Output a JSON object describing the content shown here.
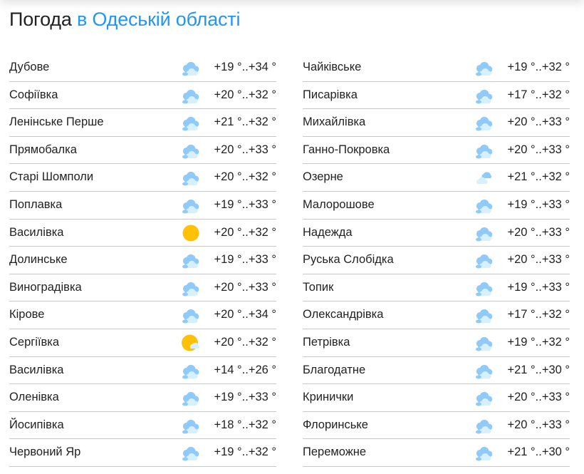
{
  "header": {
    "title_prefix": "Погода",
    "title_region": "в Одеській області"
  },
  "colors": {
    "accent": "#2196f3",
    "cloud_dark": "#90caf9",
    "cloud_light": "#d6f1fd",
    "sun": "#ffc107"
  },
  "columns": [
    [
      {
        "name": "Дубове",
        "icon": "cloudy-icon",
        "temp": "+19 °..+34 °"
      },
      {
        "name": "Софіївка",
        "icon": "cloudy-icon",
        "temp": "+20 °..+32 °"
      },
      {
        "name": "Ленінське Перше",
        "icon": "cloudy-icon",
        "temp": "+21 °..+32 °"
      },
      {
        "name": "Прямобалка",
        "icon": "cloudy-icon",
        "temp": "+20 °..+33 °"
      },
      {
        "name": "Старі Шомполи",
        "icon": "cloudy-icon",
        "temp": "+20 °..+32 °"
      },
      {
        "name": "Поплавка",
        "icon": "cloudy-icon",
        "temp": "+19 °..+33 °"
      },
      {
        "name": "Василівка",
        "icon": "sun-icon",
        "temp": "+20 °..+32 °"
      },
      {
        "name": "Долинське",
        "icon": "cloudy-icon",
        "temp": "+19 °..+33 °"
      },
      {
        "name": "Виноградівка",
        "icon": "cloudy-icon",
        "temp": "+20 °..+33 °"
      },
      {
        "name": "Кірове",
        "icon": "cloudy-icon",
        "temp": "+20 °..+34 °"
      },
      {
        "name": "Сергіївка",
        "icon": "partly-cloudy-icon",
        "temp": "+20 °..+32 °"
      },
      {
        "name": "Василівка",
        "icon": "cloudy-icon",
        "temp": "+14 °..+26 °"
      },
      {
        "name": "Оленівка",
        "icon": "cloudy-icon",
        "temp": "+19 °..+33 °"
      },
      {
        "name": "Йосипівка",
        "icon": "cloudy-icon",
        "temp": "+18 °..+32 °"
      },
      {
        "name": "Червоний Яр",
        "icon": "cloudy-icon",
        "temp": "+19 °..+32 °"
      }
    ],
    [
      {
        "name": "Чайківське",
        "icon": "cloudy-icon",
        "temp": "+19 °..+32 °"
      },
      {
        "name": "Писарівка",
        "icon": "cloudy-icon",
        "temp": "+17 °..+32 °"
      },
      {
        "name": "Михайлівка",
        "icon": "cloudy-icon",
        "temp": "+20 °..+33 °"
      },
      {
        "name": "Ганно-Покровка",
        "icon": "cloudy-icon",
        "temp": "+20 °..+33 °"
      },
      {
        "name": "Озерне",
        "icon": "light-cloud-icon",
        "temp": "+21 °..+32 °"
      },
      {
        "name": "Малорошове",
        "icon": "cloudy-icon",
        "temp": "+19 °..+33 °"
      },
      {
        "name": "Надежда",
        "icon": "cloudy-icon",
        "temp": "+20 °..+33 °"
      },
      {
        "name": "Руська Слобідка",
        "icon": "cloudy-icon",
        "temp": "+20 °..+33 °"
      },
      {
        "name": "Топик",
        "icon": "cloudy-icon",
        "temp": "+19 °..+33 °"
      },
      {
        "name": "Олександрівка",
        "icon": "cloudy-icon",
        "temp": "+17 °..+32 °"
      },
      {
        "name": "Петрівка",
        "icon": "cloudy-icon",
        "temp": "+19 °..+32 °"
      },
      {
        "name": "Благодатне",
        "icon": "cloudy-icon",
        "temp": "+21 °..+30 °"
      },
      {
        "name": "Кринички",
        "icon": "cloudy-icon",
        "temp": "+20 °..+33 °"
      },
      {
        "name": "Флоринське",
        "icon": "cloudy-icon",
        "temp": "+20 °..+33 °"
      },
      {
        "name": "Переможне",
        "icon": "cloudy-icon",
        "temp": "+21 °..+30 °"
      }
    ]
  ]
}
